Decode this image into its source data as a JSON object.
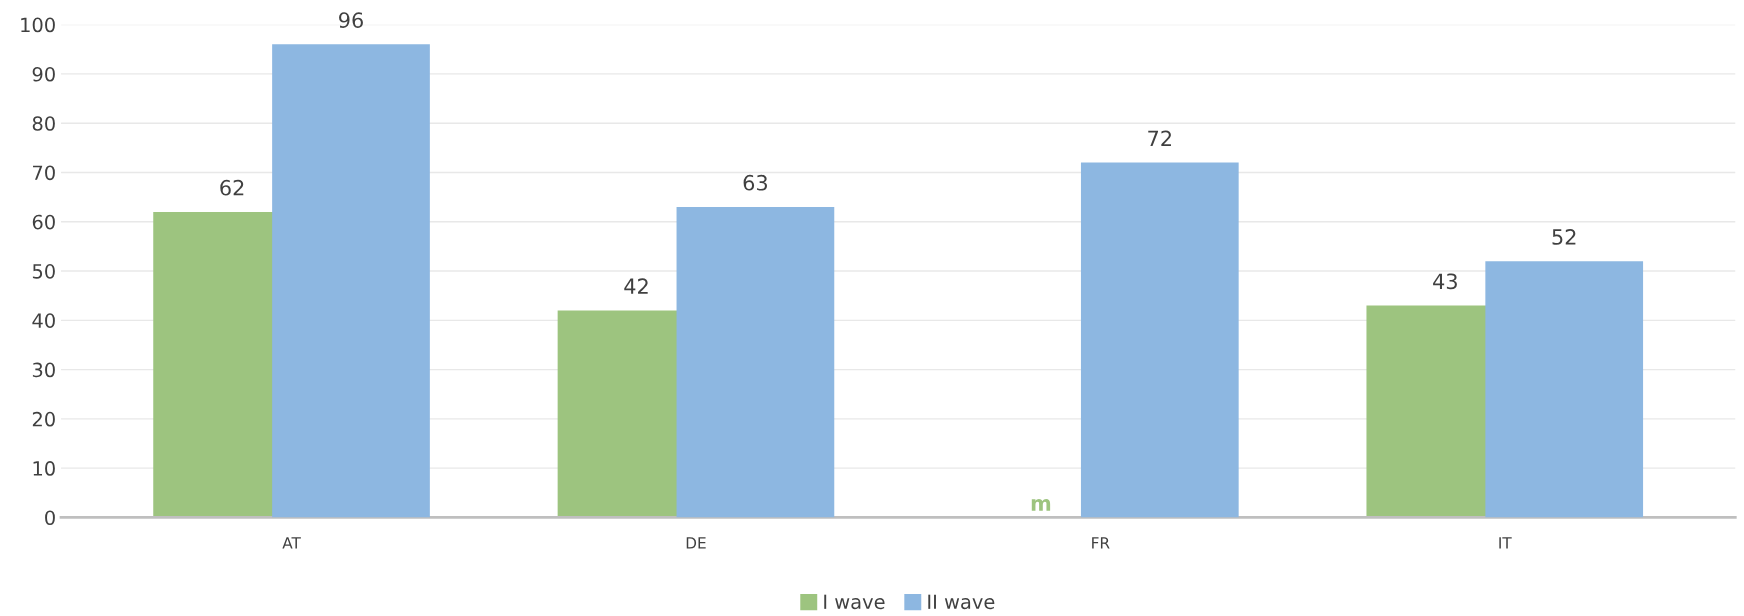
{
  "chart_data": {
    "type": "bar",
    "categories": [
      "AT",
      "DE",
      "FR",
      "IT"
    ],
    "series": [
      {
        "name": "I wave",
        "color": "#9dc47f",
        "values": [
          62,
          42,
          null,
          43
        ],
        "value_labels": [
          "62",
          "42",
          "m",
          "43"
        ]
      },
      {
        "name": "II wave",
        "color": "#8db7e1",
        "values": [
          96,
          63,
          72,
          52
        ],
        "value_labels": [
          "96",
          "63",
          "72",
          "52"
        ]
      }
    ],
    "ylim": [
      0,
      100
    ],
    "yticks": [
      0,
      10,
      20,
      30,
      40,
      50,
      60,
      70,
      80,
      90,
      100
    ],
    "grid": "y",
    "legend": "bottom"
  }
}
